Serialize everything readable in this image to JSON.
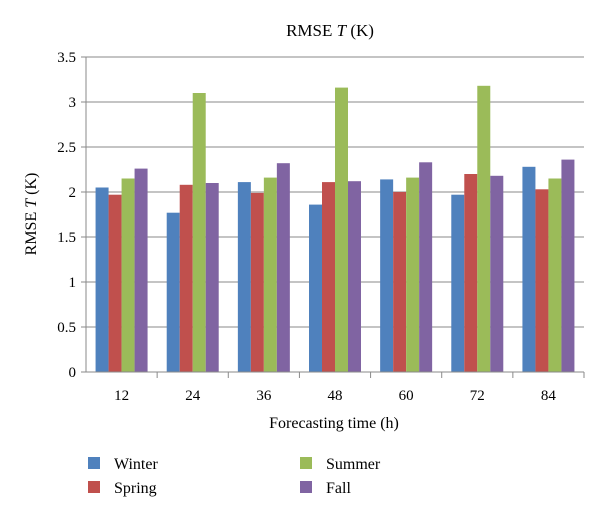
{
  "chart_data": {
    "type": "bar",
    "title": "RMSE T (K)",
    "title_parts": [
      "RMSE ",
      "T",
      " (K)"
    ],
    "xlabel": "Forecasting time (h)",
    "ylabel": "RMSE T (K)",
    "ylabel_parts": [
      "RMSE ",
      "T",
      " (K)"
    ],
    "categories": [
      "12",
      "24",
      "36",
      "48",
      "60",
      "72",
      "84"
    ],
    "ylim": [
      0,
      3.5
    ],
    "yticks": [
      "0",
      "0.5",
      "1",
      "1.5",
      "2",
      "2.5",
      "3",
      "3.5"
    ],
    "grid": true,
    "legend_position": "bottom",
    "series": [
      {
        "name": "Winter",
        "color": "#4F81BD",
        "values": [
          2.05,
          1.77,
          2.11,
          1.86,
          2.14,
          1.97,
          2.28
        ]
      },
      {
        "name": "Spring",
        "color": "#C0504D",
        "values": [
          1.97,
          2.08,
          1.99,
          2.11,
          2.0,
          2.2,
          2.03
        ]
      },
      {
        "name": "Summer",
        "color": "#9BBB59",
        "values": [
          2.15,
          3.1,
          2.16,
          3.16,
          2.16,
          3.18,
          2.15
        ]
      },
      {
        "name": "Fall",
        "color": "#8064A2",
        "values": [
          2.26,
          2.1,
          2.32,
          2.12,
          2.33,
          2.18,
          2.36
        ]
      }
    ]
  }
}
